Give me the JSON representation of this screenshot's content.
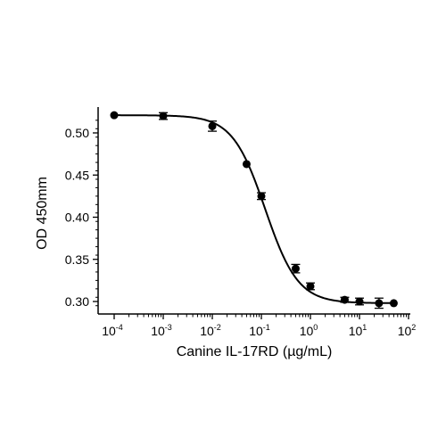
{
  "chart_data": {
    "type": "scatter",
    "xlabel": "Canine IL-17RD (µg/mL)",
    "ylabel": "OD 450mm",
    "x_scale": "log",
    "xlim": [
      0.0001,
      100
    ],
    "ylim": [
      0.292,
      0.533
    ],
    "grid": false,
    "legend": "none",
    "x_ticks": [
      {
        "base": "10",
        "exp": "-4",
        "value": 0.0001
      },
      {
        "base": "10",
        "exp": "-3",
        "value": 0.001
      },
      {
        "base": "10",
        "exp": "-2",
        "value": 0.01
      },
      {
        "base": "10",
        "exp": "-1",
        "value": 0.1
      },
      {
        "base": "10",
        "exp": "0",
        "value": 1
      },
      {
        "base": "10",
        "exp": "1",
        "value": 10
      },
      {
        "base": "10",
        "exp": "2",
        "value": 100
      }
    ],
    "y_ticks": [
      {
        "label": "0.30",
        "value": 0.3
      },
      {
        "label": "0.35",
        "value": 0.35
      },
      {
        "label": "0.40",
        "value": 0.4
      },
      {
        "label": "0.45",
        "value": 0.45
      },
      {
        "label": "0.50",
        "value": 0.5
      }
    ],
    "series": [
      {
        "points": [
          {
            "x": 0.0001,
            "y": 0.521,
            "err": 0.0
          },
          {
            "x": 0.001,
            "y": 0.52,
            "err": 0.004
          },
          {
            "x": 0.01,
            "y": 0.508,
            "err": 0.006
          },
          {
            "x": 0.05,
            "y": 0.463,
            "err": 0.0
          },
          {
            "x": 0.1,
            "y": 0.425,
            "err": 0.004
          },
          {
            "x": 0.5,
            "y": 0.339,
            "err": 0.005
          },
          {
            "x": 1,
            "y": 0.318,
            "err": 0.004
          },
          {
            "x": 5,
            "y": 0.302,
            "err": 0.003
          },
          {
            "x": 10,
            "y": 0.3,
            "err": 0.004
          },
          {
            "x": 25,
            "y": 0.298,
            "err": 0.006
          },
          {
            "x": 50,
            "y": 0.298,
            "err": 0.0
          }
        ]
      }
    ],
    "fit": {
      "model": "4PL",
      "top": 0.521,
      "bottom": 0.298,
      "ec50": 0.12,
      "hill": 1.3
    },
    "colors": {
      "marker": "#000000",
      "line": "#000000",
      "axis": "#000000"
    }
  }
}
